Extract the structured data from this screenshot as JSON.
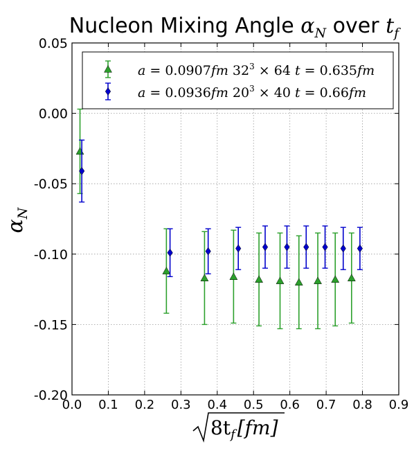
{
  "chart_data": {
    "type": "scatter",
    "title_prefix": "Nucleon Mixing Angle ",
    "title_symbol": "α",
    "title_symbol_sub": "N",
    "title_mid": " over ",
    "title_tail": "t",
    "title_tail_sub": "f",
    "xlabel_main": "8t",
    "xlabel_sub": "f",
    "xlabel_unit": "[fm]",
    "ylabel_symbol": "α",
    "ylabel_sub": "N",
    "xlim": [
      0.0,
      0.9
    ],
    "ylim": [
      -0.2,
      0.05
    ],
    "xticks": [
      "0.0",
      "0.1",
      "0.2",
      "0.3",
      "0.4",
      "0.5",
      "0.6",
      "0.7",
      "0.8",
      "0.9"
    ],
    "yticks": [
      "0.05",
      "0.00",
      "-0.05",
      "-0.10",
      "-0.15",
      "-0.20"
    ],
    "grid": true,
    "legend_position": "top",
    "series": [
      {
        "name": "a = 0.0907fm 32³ × 64 t = 0.635fm",
        "legend_a": "0.0907",
        "legend_lattice_base": "32",
        "legend_time": "64",
        "legend_t": "0.635",
        "color": "#2ca02c",
        "marker": "triangle",
        "x": [
          0.022,
          0.26,
          0.365,
          0.445,
          0.515,
          0.573,
          0.625,
          0.677,
          0.725,
          0.77
        ],
        "y": [
          -0.027,
          -0.112,
          -0.117,
          -0.116,
          -0.118,
          -0.119,
          -0.12,
          -0.119,
          -0.118,
          -0.117
        ],
        "yerr": [
          0.03,
          0.03,
          0.033,
          0.033,
          0.033,
          0.034,
          0.033,
          0.034,
          0.033,
          0.032
        ]
      },
      {
        "name": "a = 0.0936fm 20³ × 40 t = 0.66fm",
        "legend_a": "0.0936",
        "legend_lattice_base": "20",
        "legend_time": "40",
        "legend_t": "0.66",
        "color": "#0000cc",
        "marker": "diamond",
        "x": [
          0.027,
          0.27,
          0.375,
          0.458,
          0.532,
          0.592,
          0.645,
          0.697,
          0.747,
          0.793
        ],
        "y": [
          -0.041,
          -0.099,
          -0.098,
          -0.096,
          -0.095,
          -0.095,
          -0.095,
          -0.095,
          -0.096,
          -0.096
        ],
        "yerr": [
          0.022,
          0.017,
          0.016,
          0.015,
          0.015,
          0.015,
          0.015,
          0.015,
          0.015,
          0.015
        ]
      }
    ]
  }
}
